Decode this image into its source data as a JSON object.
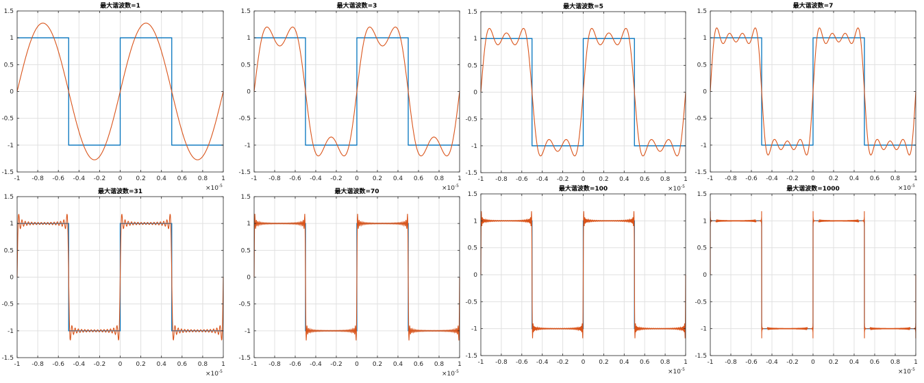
{
  "figure": {
    "background": "#ffffff",
    "axes_color": "#262626",
    "grid_color": "#e0e0e0"
  },
  "chart_data": [
    {
      "type": "line",
      "title": "最大谐波数=1",
      "x_exponent_label": "×10",
      "x_exponent_power": "-5",
      "xlim": [
        -1,
        1
      ],
      "ylim": [
        -1.5,
        1.5
      ],
      "xticks": [
        "-1",
        "-0.8",
        "-0.6",
        "-0.4",
        "-0.2",
        "0",
        "0.2",
        "0.4",
        "0.6",
        "0.8",
        "1"
      ],
      "yticks": [
        "-1.5",
        "-1",
        "-0.5",
        "0",
        "0.5",
        "1",
        "1.5"
      ],
      "grid": true,
      "max_harmonic": 1,
      "series": [
        {
          "kind": "square",
          "color": "#0072BD",
          "x": [
            -1,
            -0.5,
            -0.5,
            0,
            0,
            0.5,
            0.5,
            1
          ],
          "y": [
            1,
            1,
            -1,
            -1,
            1,
            1,
            -1,
            -1
          ]
        },
        {
          "kind": "fourier",
          "color": "#D95319"
        }
      ]
    },
    {
      "type": "line",
      "title": "最大谐波数=3",
      "x_exponent_label": "×10",
      "x_exponent_power": "-5",
      "xlim": [
        -1,
        1
      ],
      "ylim": [
        -1.5,
        1.5
      ],
      "xticks": [
        "-1",
        "-0.8",
        "-0.6",
        "-0.4",
        "-0.2",
        "0",
        "0.2",
        "0.4",
        "0.6",
        "0.8",
        "1"
      ],
      "yticks": [
        "-1.5",
        "-1",
        "-0.5",
        "0",
        "0.5",
        "1",
        "1.5"
      ],
      "grid": true,
      "max_harmonic": 3,
      "series": [
        {
          "kind": "square",
          "color": "#0072BD",
          "x": [
            -1,
            -0.5,
            -0.5,
            0,
            0,
            0.5,
            0.5,
            1
          ],
          "y": [
            1,
            1,
            -1,
            -1,
            1,
            1,
            -1,
            -1
          ]
        },
        {
          "kind": "fourier",
          "color": "#D95319"
        }
      ]
    },
    {
      "type": "line",
      "title": "最大谐波数=5",
      "x_exponent_label": "×10",
      "x_exponent_power": "-5",
      "xlim": [
        -1,
        1
      ],
      "ylim": [
        -1.5,
        1.5
      ],
      "xticks": [
        "-1",
        "-0.8",
        "-0.6",
        "-0.4",
        "-0.2",
        "0",
        "0.2",
        "0.4",
        "0.6",
        "0.8",
        "1"
      ],
      "yticks": [
        "-1.5",
        "-1",
        "-0.5",
        "0",
        "0.5",
        "1",
        "1.5"
      ],
      "grid": true,
      "max_harmonic": 5,
      "series": [
        {
          "kind": "square",
          "color": "#0072BD",
          "x": [
            -1,
            -0.5,
            -0.5,
            0,
            0,
            0.5,
            0.5,
            1
          ],
          "y": [
            1,
            1,
            -1,
            -1,
            1,
            1,
            -1,
            -1
          ]
        },
        {
          "kind": "fourier",
          "color": "#D95319"
        }
      ]
    },
    {
      "type": "line",
      "title": "最大谐波数=7",
      "x_exponent_label": "×10",
      "x_exponent_power": "-5",
      "xlim": [
        -1,
        1
      ],
      "ylim": [
        -1.5,
        1.5
      ],
      "xticks": [
        "-1",
        "-0.8",
        "-0.6",
        "-0.4",
        "-0.2",
        "0",
        "0.2",
        "0.4",
        "0.6",
        "0.8",
        "1"
      ],
      "yticks": [
        "-1.5",
        "-1",
        "-0.5",
        "0",
        "0.5",
        "1",
        "1.5"
      ],
      "grid": true,
      "max_harmonic": 7,
      "series": [
        {
          "kind": "square",
          "color": "#0072BD",
          "x": [
            -1,
            -0.5,
            -0.5,
            0,
            0,
            0.5,
            0.5,
            1
          ],
          "y": [
            1,
            1,
            -1,
            -1,
            1,
            1,
            -1,
            -1
          ]
        },
        {
          "kind": "fourier",
          "color": "#D95319"
        }
      ]
    },
    {
      "type": "line",
      "title": "最大谐波数=31",
      "x_exponent_label": "×10",
      "x_exponent_power": "-5",
      "xlim": [
        -1,
        1
      ],
      "ylim": [
        -1.5,
        1.5
      ],
      "xticks": [
        "-1",
        "-0.8",
        "-0.6",
        "-0.4",
        "-0.2",
        "0",
        "0.2",
        "0.4",
        "0.6",
        "0.8",
        "1"
      ],
      "yticks": [
        "-1.5",
        "-1",
        "-0.5",
        "0",
        "0.5",
        "1",
        "1.5"
      ],
      "grid": true,
      "max_harmonic": 31,
      "series": [
        {
          "kind": "square",
          "color": "#0072BD",
          "x": [
            -1,
            -0.5,
            -0.5,
            0,
            0,
            0.5,
            0.5,
            1
          ],
          "y": [
            1,
            1,
            -1,
            -1,
            1,
            1,
            -1,
            -1
          ]
        },
        {
          "kind": "fourier",
          "color": "#D95319"
        }
      ]
    },
    {
      "type": "line",
      "title": "最大谐波数=70",
      "x_exponent_label": "×10",
      "x_exponent_power": "-5",
      "xlim": [
        -1,
        1
      ],
      "ylim": [
        -1.5,
        1.5
      ],
      "xticks": [
        "-1",
        "-0.8",
        "-0.6",
        "-0.4",
        "-0.2",
        "0",
        "0.2",
        "0.4",
        "0.6",
        "0.8",
        "1"
      ],
      "yticks": [
        "-1.5",
        "-1",
        "-0.5",
        "0",
        "0.5",
        "1",
        "1.5"
      ],
      "grid": true,
      "max_harmonic": 70,
      "series": [
        {
          "kind": "square",
          "color": "#0072BD",
          "x": [
            -1,
            -0.5,
            -0.5,
            0,
            0,
            0.5,
            0.5,
            1
          ],
          "y": [
            1,
            1,
            -1,
            -1,
            1,
            1,
            -1,
            -1
          ]
        },
        {
          "kind": "fourier",
          "color": "#D95319"
        }
      ]
    },
    {
      "type": "line",
      "title": "最大谐波数=100",
      "x_exponent_label": "×10",
      "x_exponent_power": "-5",
      "xlim": [
        -1,
        1
      ],
      "ylim": [
        -1.5,
        1.5
      ],
      "xticks": [
        "-1",
        "-0.8",
        "-0.6",
        "-0.4",
        "-0.2",
        "0",
        "0.2",
        "0.4",
        "0.6",
        "0.8",
        "1"
      ],
      "yticks": [
        "-1.5",
        "-1",
        "-0.5",
        "0",
        "0.5",
        "1",
        "1.5"
      ],
      "grid": true,
      "max_harmonic": 100,
      "series": [
        {
          "kind": "square",
          "color": "#0072BD",
          "x": [
            -1,
            -0.5,
            -0.5,
            0,
            0,
            0.5,
            0.5,
            1
          ],
          "y": [
            1,
            1,
            -1,
            -1,
            1,
            1,
            -1,
            -1
          ]
        },
        {
          "kind": "fourier",
          "color": "#D95319"
        }
      ]
    },
    {
      "type": "line",
      "title": "最大谐波数=1000",
      "x_exponent_label": "×10",
      "x_exponent_power": "-5",
      "xlim": [
        -1,
        1
      ],
      "ylim": [
        -1.5,
        1.5
      ],
      "xticks": [
        "-1",
        "-0.8",
        "-0.6",
        "-0.4",
        "-0.2",
        "0",
        "0.2",
        "0.4",
        "0.6",
        "0.8",
        "1"
      ],
      "yticks": [
        "-1.5",
        "-1",
        "-0.5",
        "0",
        "0.5",
        "1",
        "1.5"
      ],
      "grid": true,
      "max_harmonic": 1000,
      "series": [
        {
          "kind": "square",
          "color": "#0072BD",
          "x": [
            -1,
            -0.5,
            -0.5,
            0,
            0,
            0.5,
            0.5,
            1
          ],
          "y": [
            1,
            1,
            -1,
            -1,
            1,
            1,
            -1,
            -1
          ]
        },
        {
          "kind": "fourier",
          "color": "#D95319"
        }
      ]
    }
  ]
}
